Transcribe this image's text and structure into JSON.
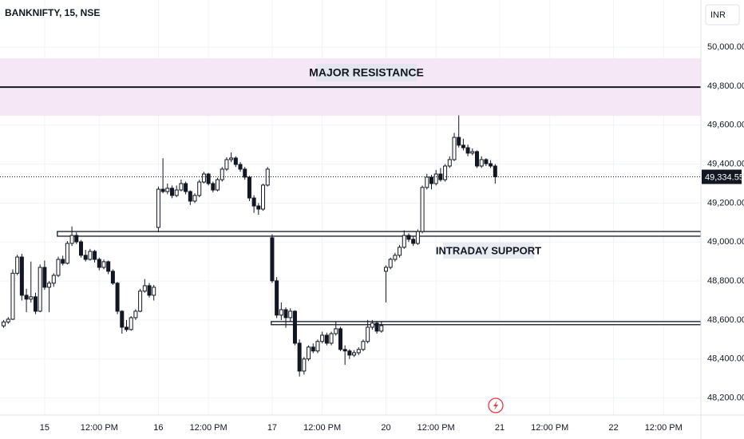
{
  "chart_data": {
    "type": "candlestick",
    "title": "BANKNIFTY, 15, NSE",
    "currency": "INR",
    "up_color": "#ffffff",
    "down_color": "#131722",
    "wick_color": "#131722",
    "grid": true,
    "xlim": [
      -9.8,
      144.2
    ],
    "ylim": [
      48100,
      50250
    ],
    "yticks": [
      {
        "value": 48200,
        "label": "48,200.00"
      },
      {
        "value": 48400,
        "label": "48,400.00"
      },
      {
        "value": 48600,
        "label": "48,600.00"
      },
      {
        "value": 48800,
        "label": "48,800.00"
      },
      {
        "value": 49000,
        "label": "49,000.00"
      },
      {
        "value": 49200,
        "label": "49,200.00"
      },
      {
        "value": 49400,
        "label": "49,400.00"
      },
      {
        "value": 49600,
        "label": "49,600.00"
      },
      {
        "value": 49800,
        "label": "49,800.00"
      },
      {
        "value": 50000,
        "label": "50,000.00"
      }
    ],
    "xticks": [
      {
        "value": 0,
        "label": "15"
      },
      {
        "value": 12,
        "label": "12:00 PM"
      },
      {
        "value": 25,
        "label": "16"
      },
      {
        "value": 36,
        "label": "12:00 PM"
      },
      {
        "value": 50,
        "label": "17"
      },
      {
        "value": 61,
        "label": "12:00 PM"
      },
      {
        "value": 75,
        "label": "20"
      },
      {
        "value": 86,
        "label": "12:00 PM"
      },
      {
        "value": 100,
        "label": "21"
      },
      {
        "value": 111,
        "label": "12:00 PM"
      },
      {
        "value": 125,
        "label": "22"
      },
      {
        "value": 136,
        "label": "12:00 PM"
      }
    ],
    "last_price": {
      "value": 49334.55,
      "label": "49,334.55"
    },
    "zones": [
      {
        "label": "MAJOR RESISTANCE",
        "low": 49648,
        "high": 49943,
        "level": 49795,
        "color": "#f6e7f6"
      }
    ],
    "supports": [
      {
        "label": "INTRADAY SUPPORT",
        "low": 49030,
        "high": 49054,
        "from": 2.8
      },
      {
        "low": 48576,
        "high": 48592,
        "from": 49.8
      }
    ],
    "x": [
      -9,
      -8,
      -7,
      -6,
      -5,
      -4,
      -3,
      -2,
      -1,
      0,
      1,
      2,
      3,
      4,
      5,
      6,
      7,
      8,
      9,
      10,
      11,
      12,
      13,
      14,
      15,
      16,
      17,
      18,
      19,
      20,
      21,
      22,
      23,
      24,
      25,
      26,
      27,
      28,
      29,
      30,
      31,
      32,
      33,
      34,
      35,
      36,
      37,
      38,
      39,
      40,
      41,
      42,
      43,
      44,
      45,
      46,
      47,
      48,
      49,
      50,
      51,
      52,
      53,
      54,
      55,
      56,
      57,
      58,
      59,
      60,
      61,
      62,
      63,
      64,
      65,
      66,
      67,
      68,
      69,
      70,
      71,
      72,
      73,
      74,
      75,
      76,
      77,
      78,
      79,
      80,
      81,
      82,
      83,
      84,
      85,
      86,
      87,
      88,
      89,
      90,
      91,
      92,
      93,
      94,
      95,
      96,
      97,
      98,
      99
    ],
    "ohlc": [
      [
        48570,
        48600,
        48560,
        48590
      ],
      [
        48590,
        48615,
        48580,
        48604
      ],
      [
        48604,
        48860,
        48600,
        48840
      ],
      [
        48840,
        48935,
        48830,
        48923
      ],
      [
        48923,
        48940,
        48700,
        48727
      ],
      [
        48727,
        48760,
        48640,
        48707
      ],
      [
        48707,
        48900,
        48690,
        48719
      ],
      [
        48719,
        48740,
        48630,
        48645
      ],
      [
        48645,
        48885,
        48640,
        48870
      ],
      [
        48870,
        48905,
        48755,
        48768
      ],
      [
        48768,
        48800,
        48640,
        48789
      ],
      [
        48789,
        48840,
        48770,
        48829
      ],
      [
        48829,
        48925,
        48820,
        48911
      ],
      [
        48911,
        48930,
        48880,
        48891
      ],
      [
        48891,
        49005,
        48885,
        48993
      ],
      [
        48993,
        49080,
        48980,
        49034
      ],
      [
        49034,
        49050,
        48990,
        49001
      ],
      [
        49001,
        49010,
        48920,
        48932
      ],
      [
        48932,
        48960,
        48900,
        48911
      ],
      [
        48911,
        48965,
        48905,
        48952
      ],
      [
        48952,
        48960,
        48895,
        48911
      ],
      [
        48911,
        48920,
        48855,
        48870
      ],
      [
        48870,
        48910,
        48860,
        48899
      ],
      [
        48899,
        48905,
        48835,
        48850
      ],
      [
        48850,
        48860,
        48780,
        48789
      ],
      [
        48789,
        48795,
        48630,
        48645
      ],
      [
        48645,
        48650,
        48530,
        48563
      ],
      [
        48563,
        48600,
        48540,
        48551
      ],
      [
        48551,
        48620,
        48545,
        48612
      ],
      [
        48612,
        48655,
        48600,
        48645
      ],
      [
        48645,
        48760,
        48640,
        48748
      ],
      [
        48748,
        48810,
        48740,
        48776
      ],
      [
        48776,
        48790,
        48715,
        48727
      ],
      [
        48727,
        48780,
        48700,
        48768
      ],
      [
        49075,
        49285,
        49050,
        49271
      ],
      [
        49271,
        49430,
        49250,
        49259
      ],
      [
        49259,
        49300,
        49245,
        49276
      ],
      [
        49276,
        49290,
        49225,
        49239
      ],
      [
        49239,
        49290,
        49230,
        49267
      ],
      [
        49267,
        49320,
        49260,
        49300
      ],
      [
        49300,
        49310,
        49245,
        49259
      ],
      [
        49259,
        49265,
        49190,
        49210
      ],
      [
        49210,
        49250,
        49200,
        49239
      ],
      [
        49239,
        49320,
        49230,
        49308
      ],
      [
        49308,
        49360,
        49300,
        49349
      ],
      [
        49349,
        49355,
        49290,
        49300
      ],
      [
        49300,
        49310,
        49255,
        49267
      ],
      [
        49267,
        49330,
        49260,
        49320
      ],
      [
        49320,
        49385,
        49310,
        49374
      ],
      [
        49374,
        49435,
        49365,
        49423
      ],
      [
        49423,
        49460,
        49410,
        49431
      ],
      [
        49431,
        49440,
        49385,
        49398
      ],
      [
        49398,
        49410,
        49360,
        49374
      ],
      [
        49374,
        49385,
        49320,
        49333
      ],
      [
        49333,
        49340,
        49210,
        49226
      ],
      [
        49226,
        49240,
        49150,
        49185
      ],
      [
        49185,
        49200,
        49140,
        49169
      ],
      [
        49169,
        49300,
        49160,
        49292
      ],
      [
        49292,
        49385,
        49285,
        49374
      ],
      [
        49022,
        49040,
        48790,
        48801
      ],
      [
        48801,
        48820,
        48610,
        48625
      ],
      [
        48625,
        48690,
        48600,
        48653
      ],
      [
        48653,
        48665,
        48560,
        48612
      ],
      [
        48612,
        48660,
        48590,
        48645
      ],
      [
        48645,
        48650,
        48470,
        48481
      ],
      [
        48481,
        48500,
        48310,
        48338
      ],
      [
        48338,
        48410,
        48320,
        48400
      ],
      [
        48400,
        48470,
        48390,
        48461
      ],
      [
        48461,
        48480,
        48430,
        48441
      ],
      [
        48441,
        48500,
        48430,
        48490
      ],
      [
        48490,
        48540,
        48480,
        48522
      ],
      [
        48522,
        48535,
        48470,
        48481
      ],
      [
        48481,
        48540,
        48470,
        48530
      ],
      [
        48530,
        48590,
        48520,
        48555
      ],
      [
        48555,
        48565,
        48440,
        48449
      ],
      [
        48449,
        48470,
        48370,
        48441
      ],
      [
        48441,
        48450,
        48400,
        48420
      ],
      [
        48420,
        48445,
        48410,
        48432
      ],
      [
        48432,
        48460,
        48420,
        48449
      ],
      [
        48449,
        48500,
        48440,
        48490
      ],
      [
        48490,
        48600,
        48480,
        48563
      ],
      [
        48563,
        48600,
        48550,
        48584
      ],
      [
        48584,
        48595,
        48530,
        48543
      ],
      [
        48543,
        48590,
        48535,
        48571
      ],
      [
        48850,
        48880,
        48690,
        48870
      ],
      [
        48870,
        48920,
        48860,
        48911
      ],
      [
        48911,
        48945,
        48900,
        48932
      ],
      [
        48932,
        48985,
        48920,
        48973
      ],
      [
        48973,
        49060,
        48965,
        49034
      ],
      [
        49034,
        49045,
        49000,
        49014
      ],
      [
        49014,
        49030,
        48980,
        48993
      ],
      [
        48993,
        49065,
        48985,
        49054
      ],
      [
        49054,
        49290,
        49045,
        49280
      ],
      [
        49280,
        49350,
        49270,
        49333
      ],
      [
        49333,
        49345,
        49270,
        49300
      ],
      [
        49300,
        49370,
        49290,
        49349
      ],
      [
        49349,
        49380,
        49310,
        49320
      ],
      [
        49320,
        49400,
        49310,
        49390
      ],
      [
        49390,
        49440,
        49380,
        49423
      ],
      [
        49423,
        49560,
        49415,
        49537
      ],
      [
        49537,
        49650,
        49485,
        49497
      ],
      [
        49497,
        49530,
        49470,
        49484
      ],
      [
        49484,
        49500,
        49440,
        49456
      ],
      [
        49456,
        49480,
        49445,
        49464
      ],
      [
        49464,
        49470,
        49380,
        49390
      ],
      [
        49390,
        49440,
        49380,
        49423
      ],
      [
        49423,
        49430,
        49390,
        49402
      ],
      [
        49402,
        49420,
        49380,
        49390
      ],
      [
        49390,
        49400,
        49300,
        49334.55
      ]
    ]
  }
}
